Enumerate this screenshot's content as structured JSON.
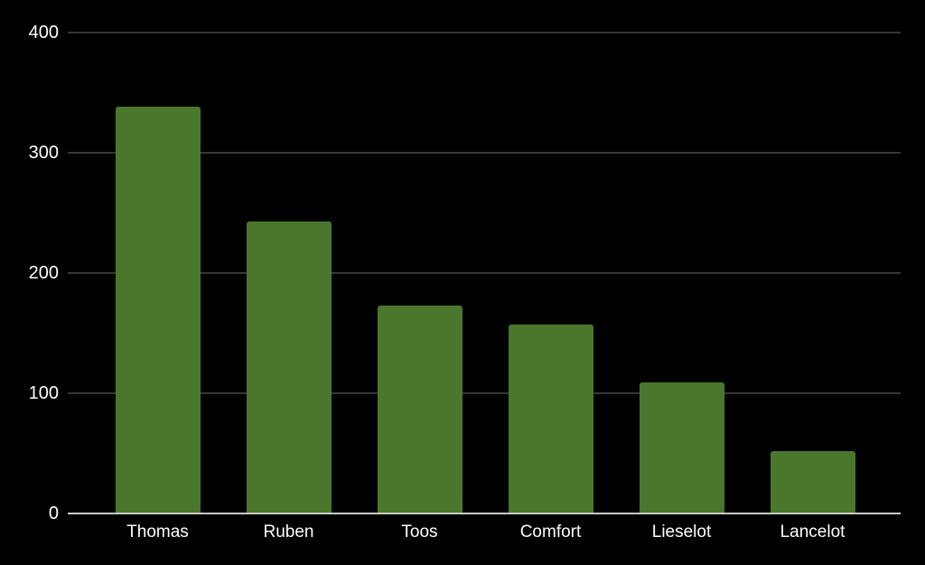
{
  "chart_data": {
    "type": "bar",
    "title": "",
    "xlabel": "",
    "ylabel": "",
    "categories": [
      "Thomas",
      "Ruben",
      "Toos",
      "Comfort",
      "Lieselot",
      "Lancelot"
    ],
    "values": [
      338,
      243,
      173,
      157,
      109,
      52
    ],
    "yticks": [
      0,
      100,
      200,
      300,
      400
    ],
    "ylim": [
      0,
      400
    ],
    "grid": true,
    "legend": false,
    "legend_position": "none",
    "colors": {
      "background": "#000000",
      "bar": "#4a772c",
      "gridline": "#373737",
      "zero_axis_line": "#c8c8c8",
      "tick_text": "#ffffff"
    }
  }
}
